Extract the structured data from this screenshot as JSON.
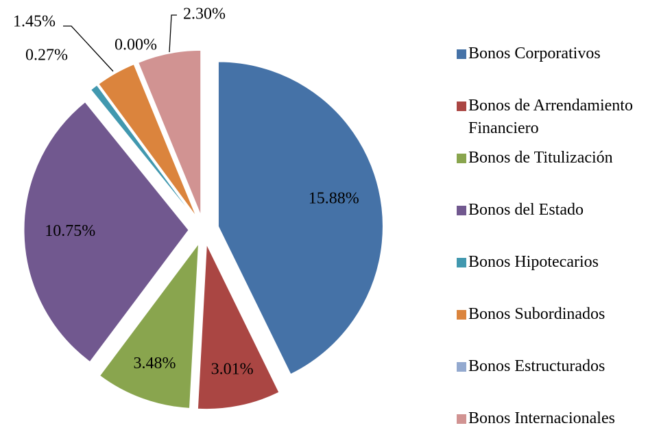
{
  "chart_data": {
    "type": "pie",
    "categories": [
      "Bonos Corporativos",
      "Bonos de Arrendamiento Financiero",
      "Bonos de Titulización",
      "Bonos del Estado",
      "Bonos Hipotecarios",
      "Bonos Subordinados",
      "Bonos Estructurados",
      "Bonos Internacionales"
    ],
    "values": [
      15.88,
      3.01,
      3.48,
      10.75,
      0.27,
      1.45,
      0.0,
      2.3
    ],
    "value_labels": [
      "15.88%",
      "3.01%",
      "3.48%",
      "10.75%",
      "0.27%",
      "1.45%",
      "0.00%",
      "2.30%"
    ],
    "colors": [
      "#4572a7",
      "#aa4643",
      "#89a54e",
      "#71588f",
      "#4198af",
      "#db843d",
      "#93a9cf",
      "#d19392"
    ],
    "legend": "right"
  }
}
